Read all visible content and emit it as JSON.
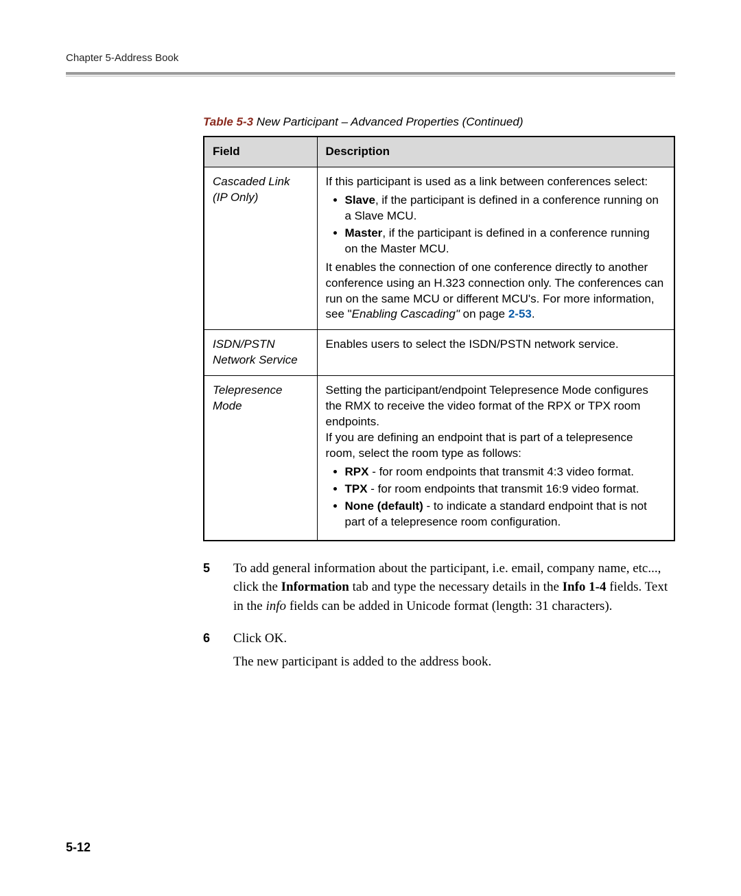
{
  "header": {
    "running_head": "Chapter 5-Address Book"
  },
  "caption": {
    "label": "Table 5-3",
    "text": " New Participant – Advanced Properties (Continued)"
  },
  "table": {
    "headers": {
      "field": "Field",
      "description": "Description"
    },
    "rows": [
      {
        "field_line1": "Cascaded Link",
        "field_line2": "(IP Only)",
        "desc_intro": "If this participant is used as a link between conferences select:",
        "bullets": [
          {
            "strong": "Slave",
            "rest": ", if the participant is defined in a conference running on a Slave MCU."
          },
          {
            "strong": "Master",
            "rest": ", if the participant is defined in a conference running on the Master MCU."
          }
        ],
        "desc_outro_a": "It enables the connection of one conference directly to another conference using an H.323 connection only. The conferences can run on the same MCU or different MCU's. For more information, see \"",
        "desc_outro_em": "Enabling Cascading\"",
        "desc_outro_b": " on page ",
        "xref": "2-53",
        "desc_outro_c": "."
      },
      {
        "field_line1": "ISDN/PSTN",
        "field_line2": "Network Service",
        "desc_plain": "Enables users to select the ISDN/PSTN network service."
      },
      {
        "field_line1": "Telepresence",
        "field_line2": "Mode",
        "desc_intro_a": "Setting the participant/endpoint Telepresence Mode configures the RMX to receive the video format of the RPX or TPX room endpoints.",
        "desc_intro_b": "If you are defining an endpoint that is part of a telepresence room, select the room type as follows:",
        "bullets": [
          {
            "strong": "RPX",
            "rest": " - for room endpoints that transmit 4:3 video format."
          },
          {
            "strong": "TPX",
            "rest": " - for room endpoints that transmit 16:9 video format."
          },
          {
            "strong": "None (default)",
            "rest": " - to indicate a standard endpoint that is not part of a telepresence room configuration."
          }
        ]
      }
    ]
  },
  "steps": {
    "s5": {
      "num": "5",
      "t1": "To add general information about the participant, i.e. email, company name, etc..., click the ",
      "b1": "Information",
      "t2": " tab and type the necessary details in the ",
      "b2": "Info 1-4",
      "t3": " fields. Text in the ",
      "i1": "info",
      "t4": " fields can be added in Unicode format (length: 31 characters)."
    },
    "s6": {
      "num": "6",
      "line1": "Click OK.",
      "line2": "The new participant is added to the address book."
    }
  },
  "footer": {
    "page_number": "5-12"
  }
}
